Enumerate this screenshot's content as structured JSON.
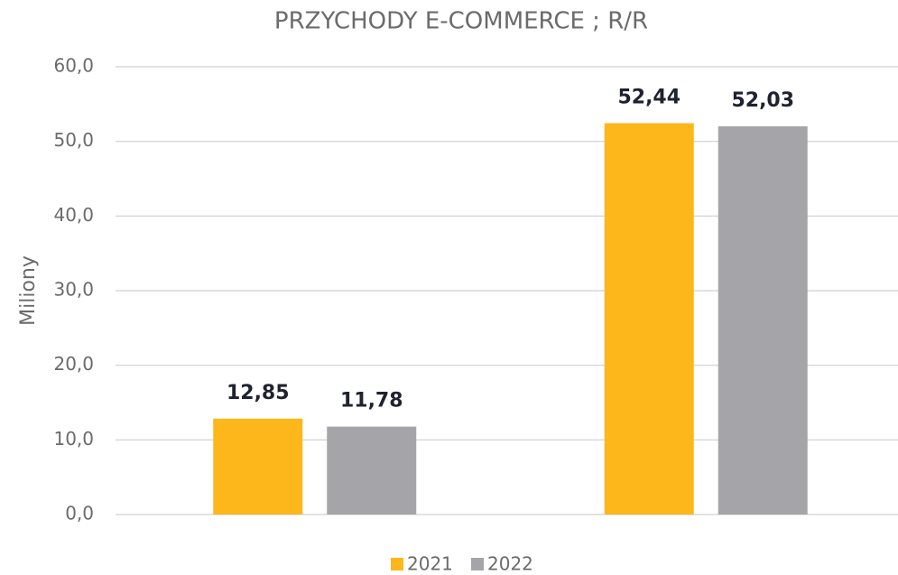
{
  "chart_data": {
    "type": "bar",
    "title": "PRZYCHODY E-COMMERCE ; R/R",
    "y_label": "Miliony",
    "categories": [
      null,
      null
    ],
    "series": [
      {
        "name": "2021",
        "color": "#fdb71a",
        "values": [
          12.85,
          52.44
        ],
        "value_labels": [
          "12,85",
          "52,44"
        ]
      },
      {
        "name": "2022",
        "color": "#a5a5a9",
        "values": [
          11.78,
          52.03
        ],
        "value_labels": [
          "11,78",
          "52,03"
        ]
      }
    ],
    "ylim": [
      0,
      60
    ],
    "yticks": [
      {
        "value": 0,
        "label": "0,0"
      },
      {
        "value": 10,
        "label": "10,0"
      },
      {
        "value": 20,
        "label": "20,0"
      },
      {
        "value": 30,
        "label": "30,0"
      },
      {
        "value": 40,
        "label": "40,0"
      },
      {
        "value": 50,
        "label": "50,0"
      },
      {
        "value": 60,
        "label": "60,0"
      }
    ],
    "grid": true,
    "legend": "bottom"
  }
}
